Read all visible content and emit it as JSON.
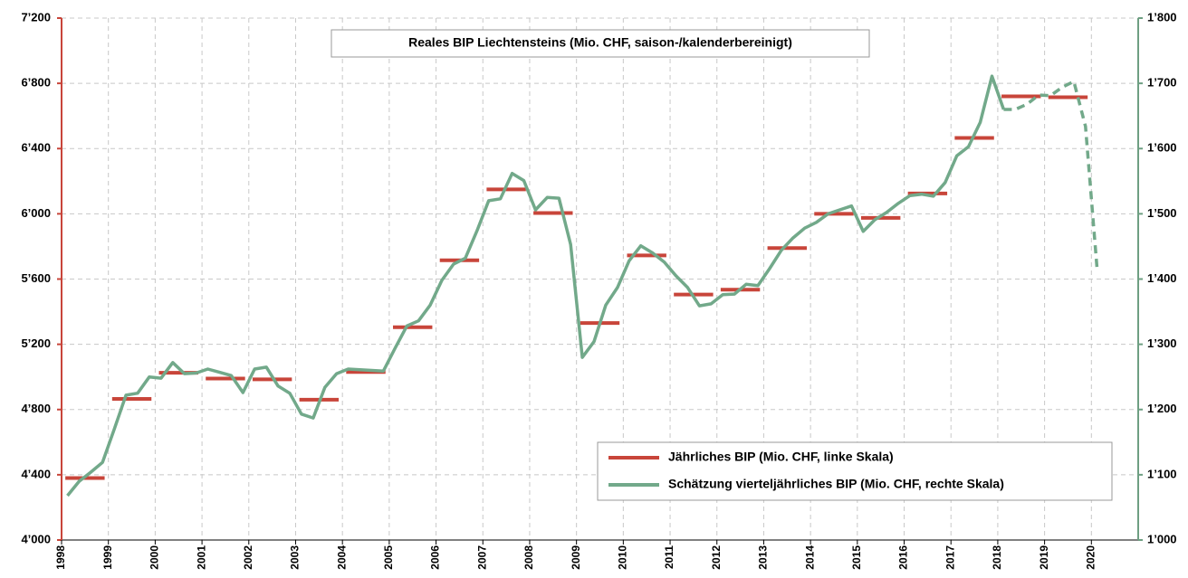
{
  "chart_data": {
    "type": "line",
    "title": "Reales BIP Liechtensteins (Mio. CHF, saison-/kalenderbereinigt)",
    "xlim": [
      1998,
      2021
    ],
    "xticks": [
      1998,
      1999,
      2000,
      2001,
      2002,
      2003,
      2004,
      2005,
      2006,
      2007,
      2008,
      2009,
      2010,
      2011,
      2012,
      2013,
      2014,
      2015,
      2016,
      2017,
      2018,
      2019,
      2020
    ],
    "ylim": [
      4000,
      7200
    ],
    "yticks": [
      {
        "value": 4000,
        "label": "4’000"
      },
      {
        "value": 4400,
        "label": "4’400"
      },
      {
        "value": 4800,
        "label": "4’800"
      },
      {
        "value": 5200,
        "label": "5’200"
      },
      {
        "value": 5600,
        "label": "5’600"
      },
      {
        "value": 6000,
        "label": "6’000"
      },
      {
        "value": 6400,
        "label": "6’400"
      },
      {
        "value": 6800,
        "label": "6’800"
      },
      {
        "value": 7200,
        "label": "7’200"
      }
    ],
    "y2lim": [
      1000,
      1800
    ],
    "y2ticks": [
      {
        "value": 1000,
        "label": "1’000"
      },
      {
        "value": 1100,
        "label": "1’100"
      },
      {
        "value": 1200,
        "label": "1’200"
      },
      {
        "value": 1300,
        "label": "1’300"
      },
      {
        "value": 1400,
        "label": "1’400"
      },
      {
        "value": 1500,
        "label": "1’500"
      },
      {
        "value": 1600,
        "label": "1’600"
      },
      {
        "value": 1700,
        "label": "1’700"
      },
      {
        "value": 1800,
        "label": "1’800"
      }
    ],
    "y_color": "#c8453a",
    "y2_color": "#6e9f82",
    "grid": true,
    "legend": "lower right",
    "series": [
      {
        "name": "Jährliches BIP (Mio. CHF, linke Skala)",
        "color": "#c8453a",
        "marker": "hline",
        "x": [
          1998,
          1999,
          2000,
          2001,
          2002,
          2003,
          2004,
          2005,
          2006,
          2007,
          2008,
          2009,
          2010,
          2011,
          2012,
          2013,
          2014,
          2015,
          2016,
          2017,
          2018,
          2019
        ],
        "values": [
          4380,
          4865,
          5025,
          4990,
          4985,
          4860,
          5030,
          5305,
          5715,
          6150,
          6005,
          5330,
          5745,
          5505,
          5535,
          5790,
          6000,
          5975,
          6125,
          6465,
          6720,
          6715
        ]
      },
      {
        "name": "Schätzung vierteljährliches BIP (Mio. CHF, rechte Skala)",
        "color": "#72a98a",
        "axis": "y2",
        "linestyle": "solid",
        "x": [
          1998.125,
          1998.375,
          1998.625,
          1998.875,
          1999.125,
          1999.375,
          1999.625,
          1999.875,
          2000.125,
          2000.375,
          2000.625,
          2000.875,
          2001.125,
          2001.375,
          2001.625,
          2001.875,
          2002.125,
          2002.375,
          2002.625,
          2002.875,
          2003.125,
          2003.375,
          2003.625,
          2003.875,
          2004.125,
          2004.375,
          2004.625,
          2004.875,
          2005.125,
          2005.375,
          2005.625,
          2005.875,
          2006.125,
          2006.375,
          2006.625,
          2006.875,
          2007.125,
          2007.375,
          2007.625,
          2007.875,
          2008.125,
          2008.375,
          2008.625,
          2008.875,
          2009.125,
          2009.375,
          2009.625,
          2009.875,
          2010.125,
          2010.375,
          2010.625,
          2010.875,
          2011.125,
          2011.375,
          2011.625,
          2011.875,
          2012.125,
          2012.375,
          2012.625,
          2012.875,
          2013.125,
          2013.375,
          2013.625,
          2013.875,
          2014.125,
          2014.375,
          2014.625,
          2014.875,
          2015.125,
          2015.375,
          2015.625,
          2015.875,
          2016.125,
          2016.375,
          2016.625,
          2016.875,
          2017.125,
          2017.375,
          2017.625,
          2017.875,
          2018.125
        ],
        "values": [
          1068,
          1090,
          1104,
          1119,
          1170,
          1222,
          1225,
          1250,
          1248,
          1272,
          1255,
          1256,
          1262,
          1257,
          1252,
          1226,
          1262,
          1265,
          1236,
          1225,
          1193,
          1187,
          1234,
          1255,
          1262,
          1261,
          1260,
          1259,
          1294,
          1328,
          1336,
          1360,
          1398,
          1423,
          1432,
          1474,
          1520,
          1523,
          1562,
          1551,
          1506,
          1525,
          1524,
          1453,
          1280,
          1304,
          1360,
          1387,
          1428,
          1451,
          1440,
          1426,
          1405,
          1387,
          1359,
          1362,
          1376,
          1377,
          1392,
          1390,
          1416,
          1444,
          1463,
          1478,
          1487,
          1500,
          1506,
          1512,
          1473,
          1491,
          1502,
          1516,
          1528,
          1530,
          1527,
          1548,
          1589,
          1603,
          1640,
          1711,
          1660
        ]
      },
      {
        "color": "#72a98a",
        "axis": "y2",
        "linestyle": "dashed",
        "x": [
          2018.125,
          2018.375,
          2018.625,
          2018.875,
          2019.125,
          2019.375,
          2019.625,
          2019.875,
          2020.125
        ],
        "values": [
          1660,
          1660,
          1668,
          1682,
          1681,
          1694,
          1703,
          1634,
          1412
        ]
      }
    ]
  }
}
